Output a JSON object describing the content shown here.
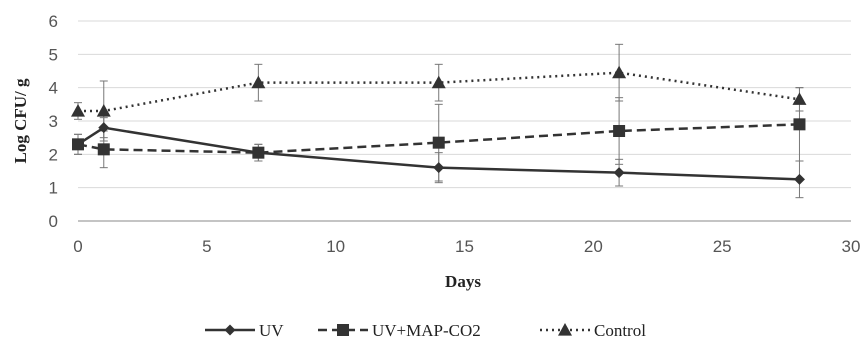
{
  "chart_data": {
    "type": "line",
    "title": "",
    "xlabel": "Days",
    "ylabel": "Log CFU/ g",
    "xlim": [
      0,
      30
    ],
    "ylim": [
      0,
      6
    ],
    "xticks": [
      0,
      5,
      10,
      15,
      20,
      25,
      30
    ],
    "yticks": [
      0,
      1,
      2,
      3,
      4,
      5,
      6
    ],
    "grid": "horizontal",
    "legend_position": "bottom",
    "x": [
      0,
      1,
      7,
      14,
      21,
      28
    ],
    "series": [
      {
        "name": "UV",
        "values": [
          2.3,
          2.8,
          2.05,
          1.6,
          1.45,
          1.25
        ],
        "error": [
          0.3,
          0.3,
          0.25,
          0.45,
          0.4,
          0.55
        ],
        "marker": "diamond",
        "line_style": "solid",
        "color": "#333333"
      },
      {
        "name": "UV+MAP-CO2",
        "values": [
          2.3,
          2.15,
          2.05,
          2.35,
          2.7,
          2.9
        ],
        "error": [
          0.3,
          0.55,
          0.25,
          1.15,
          1.0,
          1.1
        ],
        "marker": "square",
        "line_style": "dashed",
        "color": "#333333"
      },
      {
        "name": "Control",
        "values": [
          3.3,
          3.3,
          4.15,
          4.15,
          4.45,
          3.65
        ],
        "error": [
          0.25,
          0.9,
          0.55,
          0.55,
          0.85,
          0.35
        ],
        "marker": "triangle",
        "line_style": "dotted",
        "color": "#333333"
      }
    ]
  },
  "colors": {
    "gridline": "#d9d9d9",
    "axis": "#888888",
    "errorbar": "#777777"
  }
}
